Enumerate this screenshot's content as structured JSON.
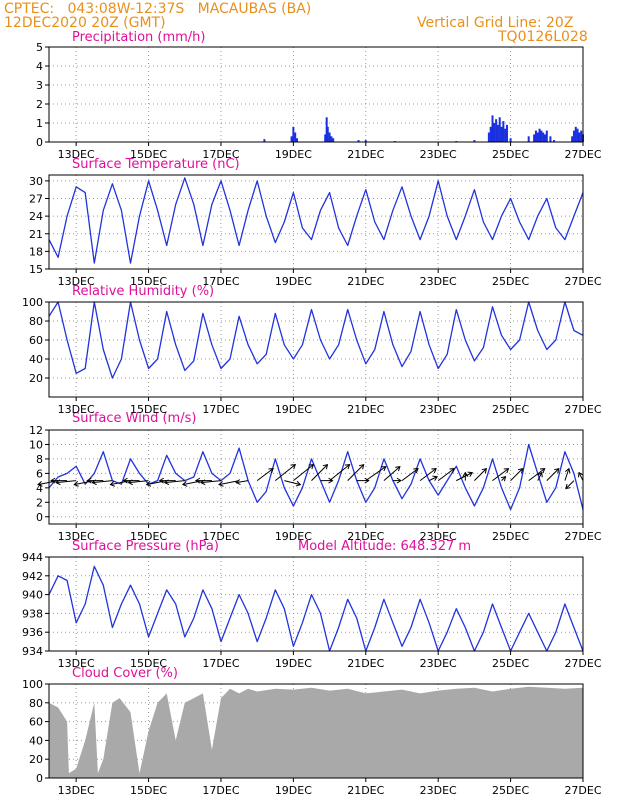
{
  "header": {
    "line1_left": "CPTEC:   043:08W-12:37S   MACAUBAS (BA)",
    "line2_left": "12DEC2020 20Z (GMT)",
    "line1_right": "Vertical Grid Line: 20Z",
    "line2_right": "TQ0126L028"
  },
  "colors": {
    "header": "#e8901c",
    "title": "#e0109a",
    "line": "#2233dd",
    "bar": "#1a2fe0",
    "cloud": "#a9a9a9",
    "wind": "#000000"
  },
  "x_axis": {
    "ticks": [
      "13DEC",
      "15DEC",
      "17DEC",
      "19DEC",
      "21DEC",
      "23DEC",
      "25DEC",
      "27DEC"
    ],
    "tick_days": [
      13,
      15,
      17,
      19,
      21,
      23,
      25,
      27
    ],
    "start_day": 12.25,
    "end_day": 27.0
  },
  "chart_data": [
    {
      "name": "precip",
      "type": "bar",
      "title": "Precipitation (mm/h)",
      "ylim": [
        0,
        5
      ],
      "yticks": [
        0,
        1,
        2,
        3,
        4,
        5
      ],
      "x": [
        18.2,
        18.95,
        19.0,
        19.05,
        19.1,
        19.88,
        19.92,
        19.95,
        20.0,
        20.05,
        20.1,
        20.8,
        21.0,
        21.8,
        23.5,
        24.0,
        24.4,
        24.45,
        24.5,
        24.55,
        24.6,
        24.65,
        24.7,
        24.75,
        24.8,
        24.85,
        24.9,
        25.0,
        25.5,
        25.65,
        25.7,
        25.75,
        25.8,
        25.85,
        25.9,
        25.95,
        26.0,
        26.1,
        26.2,
        26.7,
        26.75,
        26.8,
        26.85,
        26.9,
        26.95,
        27.0
      ],
      "values": [
        0.15,
        0.3,
        0.8,
        0.5,
        0.2,
        0.4,
        1.3,
        0.8,
        0.5,
        0.3,
        0.2,
        0.1,
        0.1,
        0.05,
        0.05,
        0.1,
        0.5,
        0.8,
        1.4,
        1.0,
        1.2,
        0.9,
        1.3,
        0.8,
        1.1,
        0.7,
        0.9,
        0.2,
        0.3,
        0.4,
        0.6,
        0.5,
        0.7,
        0.6,
        0.5,
        0.4,
        0.6,
        0.3,
        0.1,
        0.3,
        0.6,
        0.8,
        0.7,
        0.5,
        0.6,
        0.4
      ]
    },
    {
      "name": "temp",
      "type": "line",
      "title": "Surface Temperature (nC)",
      "ylim": [
        15,
        31
      ],
      "yticks": [
        15,
        18,
        21,
        24,
        27,
        30
      ],
      "x": [
        12.25,
        12.5,
        12.75,
        13.0,
        13.25,
        13.5,
        13.75,
        14.0,
        14.25,
        14.5,
        14.75,
        15.0,
        15.25,
        15.5,
        15.75,
        16.0,
        16.25,
        16.5,
        16.75,
        17.0,
        17.25,
        17.5,
        17.75,
        18.0,
        18.25,
        18.5,
        18.75,
        19.0,
        19.25,
        19.5,
        19.75,
        20.0,
        20.25,
        20.5,
        20.75,
        21.0,
        21.25,
        21.5,
        21.75,
        22.0,
        22.25,
        22.5,
        22.75,
        23.0,
        23.25,
        23.5,
        23.75,
        24.0,
        24.25,
        24.5,
        24.75,
        25.0,
        25.25,
        25.5,
        25.75,
        26.0,
        26.25,
        26.5,
        26.75,
        27.0
      ],
      "values": [
        20,
        17,
        24,
        29,
        28,
        16,
        25,
        29.5,
        25,
        16,
        24,
        30,
        25,
        19,
        26,
        30.5,
        26,
        19,
        26,
        30,
        25,
        19,
        25,
        30,
        24,
        19.5,
        23,
        28,
        22,
        20,
        25,
        28,
        22,
        19,
        24,
        28.5,
        23,
        20,
        25,
        29,
        24,
        20,
        24,
        30,
        24,
        20,
        24,
        28.5,
        23,
        20,
        24,
        27,
        23,
        20,
        24,
        27,
        22,
        20,
        24,
        28
      ]
    },
    {
      "name": "rh",
      "type": "line",
      "title": "Relative Humidity (%)",
      "ylim": [
        0,
        100
      ],
      "yticks": [
        20,
        40,
        60,
        80,
        100
      ],
      "x": [
        12.25,
        12.5,
        12.75,
        13.0,
        13.25,
        13.5,
        13.75,
        14.0,
        14.25,
        14.5,
        14.75,
        15.0,
        15.25,
        15.5,
        15.75,
        16.0,
        16.25,
        16.5,
        16.75,
        17.0,
        17.25,
        17.5,
        17.75,
        18.0,
        18.25,
        18.5,
        18.75,
        19.0,
        19.25,
        19.5,
        19.75,
        20.0,
        20.25,
        20.5,
        20.75,
        21.0,
        21.25,
        21.5,
        21.75,
        22.0,
        22.25,
        22.5,
        22.75,
        23.0,
        23.25,
        23.5,
        23.75,
        24.0,
        24.25,
        24.5,
        24.75,
        25.0,
        25.25,
        25.5,
        25.75,
        26.0,
        26.25,
        26.5,
        26.75,
        27.0
      ],
      "values": [
        85,
        100,
        60,
        25,
        30,
        100,
        50,
        20,
        40,
        100,
        60,
        30,
        40,
        90,
        55,
        28,
        38,
        88,
        55,
        30,
        40,
        85,
        55,
        35,
        45,
        88,
        55,
        40,
        55,
        92,
        60,
        40,
        55,
        92,
        60,
        35,
        50,
        90,
        55,
        32,
        48,
        90,
        55,
        30,
        45,
        92,
        60,
        38,
        52,
        95,
        65,
        50,
        60,
        100,
        70,
        50,
        60,
        100,
        70,
        65
      ]
    },
    {
      "name": "wind",
      "type": "line",
      "title": "Surface Wind (m/s)",
      "ylim": [
        -1,
        12
      ],
      "yticks": [
        0,
        2,
        4,
        6,
        8,
        10,
        12
      ],
      "x": [
        12.25,
        12.5,
        12.75,
        13.0,
        13.25,
        13.5,
        13.75,
        14.0,
        14.25,
        14.5,
        14.75,
        15.0,
        15.25,
        15.5,
        15.75,
        16.0,
        16.25,
        16.5,
        16.75,
        17.0,
        17.25,
        17.5,
        17.75,
        18.0,
        18.25,
        18.5,
        18.75,
        19.0,
        19.25,
        19.5,
        19.75,
        20.0,
        20.25,
        20.5,
        20.75,
        21.0,
        21.25,
        21.5,
        21.75,
        22.0,
        22.25,
        22.5,
        22.75,
        23.0,
        23.25,
        23.5,
        23.75,
        24.0,
        24.25,
        24.5,
        24.75,
        25.0,
        25.25,
        25.5,
        25.75,
        26.0,
        26.25,
        26.5,
        26.75,
        27.0
      ],
      "values": [
        4,
        5.5,
        6,
        7,
        4.5,
        6,
        9,
        5,
        4.5,
        8,
        6,
        4.5,
        5,
        8.5,
        6,
        5,
        5.5,
        9,
        6,
        5,
        6,
        9.5,
        5,
        2,
        3.5,
        8,
        4,
        1.5,
        4,
        8,
        5,
        2,
        5,
        9,
        5,
        2,
        4,
        8,
        5,
        2.5,
        4.5,
        8,
        5,
        3,
        5,
        7,
        4,
        1.5,
        4,
        8,
        4,
        1,
        4,
        10,
        6,
        2,
        4,
        9,
        6,
        1
      ]
    },
    {
      "name": "pressure",
      "type": "line",
      "title": "Surface Pressure (hPa)",
      "annotation": "Model Altitude: 648.327 m",
      "ylim": [
        934,
        944
      ],
      "yticks": [
        934,
        936,
        938,
        940,
        942,
        944
      ],
      "x": [
        12.25,
        12.5,
        12.75,
        13.0,
        13.25,
        13.5,
        13.75,
        14.0,
        14.25,
        14.5,
        14.75,
        15.0,
        15.25,
        15.5,
        15.75,
        16.0,
        16.25,
        16.5,
        16.75,
        17.0,
        17.25,
        17.5,
        17.75,
        18.0,
        18.25,
        18.5,
        18.75,
        19.0,
        19.25,
        19.5,
        19.75,
        20.0,
        20.25,
        20.5,
        20.75,
        21.0,
        21.25,
        21.5,
        21.75,
        22.0,
        22.25,
        22.5,
        22.75,
        23.0,
        23.25,
        23.5,
        23.75,
        24.0,
        24.25,
        24.5,
        24.75,
        25.0,
        25.25,
        25.5,
        25.75,
        26.0,
        26.25,
        26.5,
        26.75,
        27.0
      ],
      "values": [
        940,
        942,
        941.5,
        937,
        939,
        943,
        941,
        936.5,
        939,
        941,
        939,
        935.5,
        938,
        940.5,
        939,
        935.5,
        937.5,
        940.5,
        938.5,
        935,
        937.5,
        940,
        938,
        935,
        937.5,
        940.5,
        938.5,
        934.5,
        937,
        940,
        938,
        934,
        936.5,
        939.5,
        937.5,
        934,
        936.5,
        939.5,
        937,
        934.5,
        936.5,
        939.5,
        937,
        934,
        936,
        938.5,
        936.5,
        934,
        936,
        939,
        936.5,
        934,
        936,
        938,
        936,
        934,
        936,
        939,
        936.5,
        934
      ]
    },
    {
      "name": "cloud",
      "type": "area",
      "title": "Cloud Cover (%)",
      "ylim": [
        0,
        100
      ],
      "yticks": [
        0,
        20,
        40,
        60,
        80,
        100
      ],
      "x": [
        12.25,
        12.5,
        12.75,
        12.8,
        13.0,
        13.25,
        13.5,
        13.6,
        13.75,
        14.0,
        14.2,
        14.5,
        14.75,
        15.0,
        15.25,
        15.5,
        15.75,
        16.0,
        16.25,
        16.5,
        16.75,
        17.0,
        17.25,
        17.5,
        17.75,
        18.0,
        18.5,
        19.0,
        19.5,
        20.0,
        20.5,
        21.0,
        21.5,
        22.0,
        22.5,
        23.0,
        23.5,
        24.0,
        24.5,
        25.0,
        25.5,
        26.0,
        26.5,
        27.0
      ],
      "values": [
        80,
        75,
        60,
        5,
        10,
        40,
        80,
        5,
        20,
        80,
        85,
        70,
        5,
        50,
        80,
        90,
        40,
        80,
        85,
        90,
        30,
        85,
        95,
        90,
        95,
        92,
        95,
        94,
        96,
        93,
        95,
        90,
        92,
        94,
        90,
        93,
        95,
        96,
        92,
        95,
        97,
        96,
        95,
        96
      ]
    }
  ],
  "wind_vectors": {
    "x": [
      12.5,
      12.75,
      13.0,
      13.5,
      13.75,
      14.0,
      14.5,
      14.75,
      15.0,
      15.5,
      15.75,
      16.0,
      16.5,
      16.75,
      17.0,
      17.5,
      17.75,
      18.0,
      18.5,
      18.75,
      19.0,
      19.5,
      19.75,
      20.0,
      20.5,
      20.75,
      21.0,
      21.5,
      21.75,
      22.0,
      22.5,
      22.75,
      23.0,
      23.5,
      23.75,
      24.0,
      24.5,
      24.75,
      25.0,
      25.5,
      25.75,
      26.0,
      26.5,
      26.75,
      27.0
    ],
    "u": [
      -5,
      -4,
      -5,
      -5,
      -4,
      -5,
      -5,
      -4,
      -5,
      -5,
      -4,
      -5,
      -5,
      -4,
      -5,
      -5,
      -3,
      4,
      5,
      4,
      5,
      4,
      3,
      5,
      4,
      3,
      5,
      4,
      2,
      4,
      4,
      2,
      4,
      4,
      0,
      3,
      4,
      1,
      3,
      4,
      1,
      3,
      1,
      -2,
      -1
    ],
    "v": [
      -1,
      0,
      -0.5,
      -1,
      0,
      -0.5,
      -1,
      0,
      -0.5,
      -1,
      0,
      -0.5,
      -1,
      0,
      -0.5,
      -1,
      -0.5,
      3,
      4,
      -1,
      4,
      4,
      0,
      4,
      4,
      0,
      3.5,
      3.5,
      0,
      3,
      3,
      1,
      3,
      2,
      2,
      3,
      3,
      1,
      3,
      3,
      2,
      3,
      3,
      -2,
      2
    ]
  }
}
